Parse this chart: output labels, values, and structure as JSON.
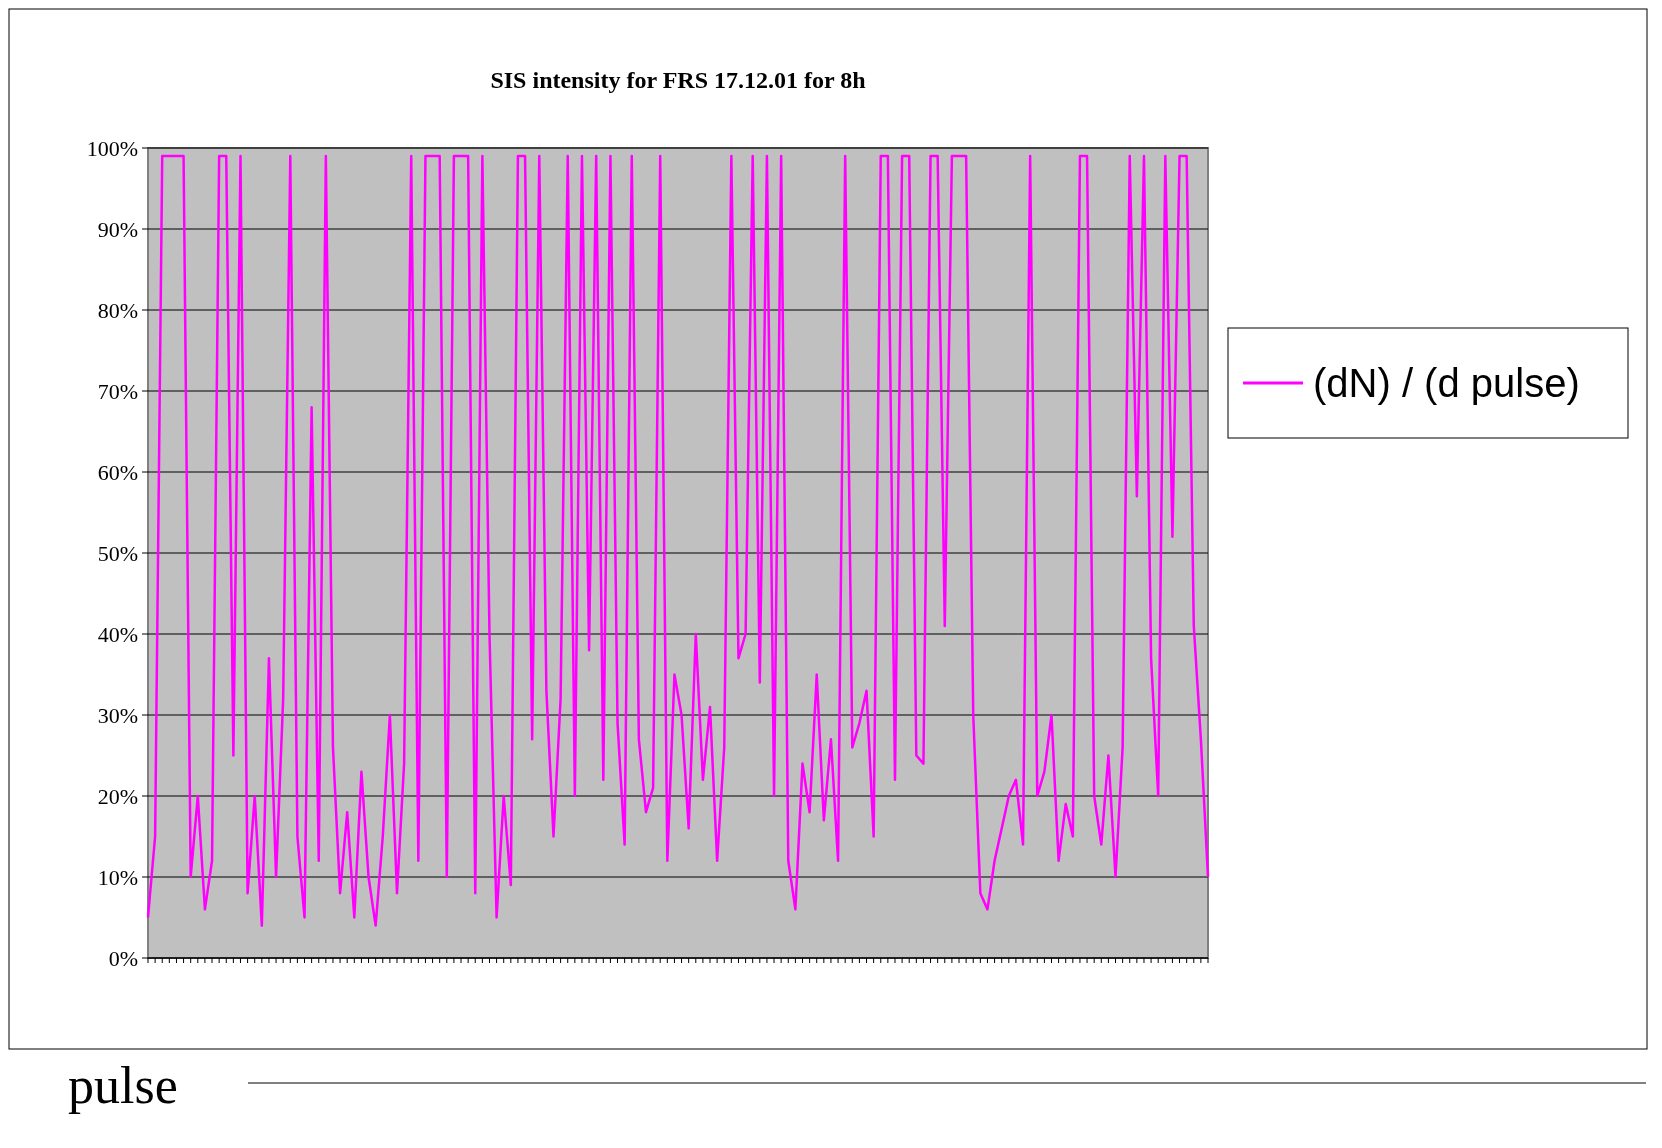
{
  "chart_data": {
    "type": "line",
    "title": "SIS intensity for FRS 17.12.01 for 8h",
    "xlabel": "pulse",
    "categories": [
      null,
      null,
      null,
      null,
      null,
      null,
      null,
      null,
      null,
      null,
      null,
      null,
      null,
      null,
      null,
      null,
      null,
      null,
      null,
      null,
      null,
      null,
      null,
      null,
      null,
      null,
      null,
      null,
      null,
      null,
      null,
      null,
      null,
      null,
      null,
      null,
      null,
      null,
      null,
      null,
      null,
      null,
      null,
      null,
      null,
      null,
      null,
      null,
      null,
      null,
      null,
      null,
      null,
      null,
      null,
      null,
      null,
      null,
      null,
      null,
      null,
      null,
      null,
      null,
      null,
      null,
      null,
      null,
      null,
      null,
      null,
      null,
      null,
      null,
      null,
      null,
      null,
      null,
      null,
      null,
      null,
      null,
      null,
      null,
      null,
      null,
      null,
      null,
      null,
      null,
      null,
      null,
      null,
      null,
      null,
      null,
      null,
      null,
      null,
      null,
      null,
      null,
      null,
      null,
      null,
      null,
      null,
      null,
      null,
      null,
      null,
      null,
      null,
      null,
      null,
      null,
      null,
      null,
      null,
      null,
      null,
      null,
      null,
      null,
      null,
      null,
      null,
      null,
      null,
      null,
      null,
      null,
      null,
      null,
      null,
      null,
      null,
      null,
      null,
      null,
      null,
      null,
      null,
      null,
      null,
      null,
      null,
      null,
      null,
      null
    ],
    "series": [
      {
        "name": "(dN) / (d pulse)",
        "color": "#ff00ff",
        "values": [
          5,
          15,
          99,
          99,
          99,
          99,
          10,
          20,
          6,
          12,
          99,
          99,
          25,
          99,
          8,
          20,
          4,
          37,
          10,
          32,
          99,
          15,
          5,
          68,
          12,
          99,
          26,
          8,
          18,
          5,
          23,
          10,
          4,
          15,
          30,
          8,
          24,
          99,
          12,
          99,
          99,
          99,
          10,
          99,
          99,
          99,
          8,
          99,
          40,
          5,
          20,
          9,
          99,
          99,
          27,
          99,
          33,
          15,
          32,
          99,
          20,
          99,
          38,
          99,
          22,
          99,
          29,
          14,
          99,
          27,
          18,
          21,
          99,
          12,
          35,
          30,
          16,
          40,
          22,
          31,
          12,
          26,
          99,
          37,
          40,
          99,
          34,
          99,
          20,
          99,
          12,
          6,
          24,
          18,
          35,
          17,
          27,
          12,
          99,
          26,
          29,
          33,
          15,
          99,
          99,
          22,
          99,
          99,
          25,
          24,
          99,
          99,
          41,
          99,
          99,
          99,
          30,
          8,
          6,
          12,
          16,
          20,
          22,
          14,
          99,
          20,
          23,
          30,
          12,
          19,
          15,
          99,
          99,
          20,
          14,
          25,
          10,
          26,
          99,
          57,
          99,
          37,
          20,
          99,
          52,
          99,
          99,
          41,
          27,
          10
        ]
      }
    ],
    "ylim": [
      0,
      100
    ],
    "yticks": [
      {
        "value": 0,
        "label": "0%"
      },
      {
        "value": 10,
        "label": "10%"
      },
      {
        "value": 20,
        "label": "20%"
      },
      {
        "value": 30,
        "label": "30%"
      },
      {
        "value": 40,
        "label": "40%"
      },
      {
        "value": 50,
        "label": "50%"
      },
      {
        "value": 60,
        "label": "60%"
      },
      {
        "value": 70,
        "label": "70%"
      },
      {
        "value": 80,
        "label": "80%"
      },
      {
        "value": 90,
        "label": "90%"
      },
      {
        "value": 100,
        "label": "100%"
      }
    ],
    "grid": "y",
    "legend": "right",
    "marker": "none",
    "line_style": "solid"
  }
}
